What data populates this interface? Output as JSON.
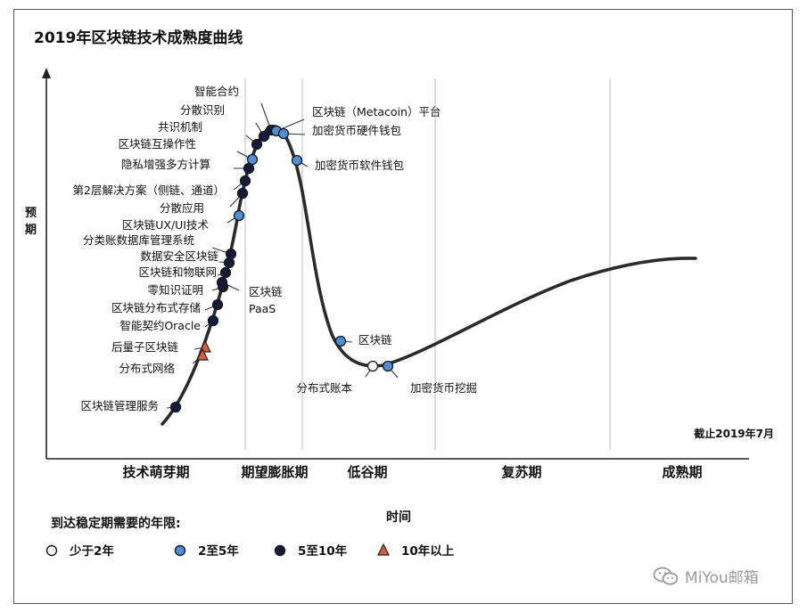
{
  "chart_data": {
    "type": "line",
    "title": "2019年区块链技术成熟度曲线",
    "xlabel": "时间",
    "ylabel": "预期",
    "date_note": "截止2019年7月",
    "phases": [
      "技术萌芽期",
      "期望膨胀期",
      "低谷期",
      "复苏期",
      "成熟期"
    ],
    "legend": {
      "title": "到达稳定期需要的年限:",
      "items": [
        {
          "key": "lt2",
          "label": "少于2年",
          "marker": "circle",
          "color": "#ffffff"
        },
        {
          "key": "2to5",
          "label": "2至5年",
          "marker": "circle",
          "color": "#4a90d9"
        },
        {
          "key": "5to10",
          "label": "5至10年",
          "marker": "circle",
          "color": "#141a3c"
        },
        {
          "key": "gt10",
          "label": "10年以上",
          "marker": "triangle",
          "color": "#e05a3a"
        }
      ]
    },
    "points": [
      {
        "label": "智能合约",
        "cat": "5to10"
      },
      {
        "label": "分散识别",
        "cat": "5to10"
      },
      {
        "label": "共识机制",
        "cat": "5to10"
      },
      {
        "label": "区块链互操作性",
        "cat": "2to5"
      },
      {
        "label": "隐私增强多方计算",
        "cat": "5to10"
      },
      {
        "label": "第2层解决方案（侧链、通道）",
        "cat": "5to10"
      },
      {
        "label": "分散应用",
        "cat": "5to10"
      },
      {
        "label": "区块链UX/UI技术",
        "cat": "2to5"
      },
      {
        "label": "分类账数据库管理系统",
        "cat": "5to10"
      },
      {
        "label": "数据安全区块链",
        "cat": "5to10"
      },
      {
        "label": "区块链和物联网",
        "cat": "5to10"
      },
      {
        "label": "零知识证明",
        "cat": "5to10"
      },
      {
        "label": "区块链PaaS",
        "cat": "5to10"
      },
      {
        "label": "区块链分布式存储",
        "cat": "5to10"
      },
      {
        "label": "智能契约Oracle",
        "cat": "5to10"
      },
      {
        "label": "后量子区块链",
        "cat": "gt10"
      },
      {
        "label": "分布式网络",
        "cat": "gt10"
      },
      {
        "label": "区块链管理服务",
        "cat": "5to10"
      },
      {
        "label": "区块链（Metacoin）平台",
        "cat": "2to5"
      },
      {
        "label": "加密货币硬件钱包",
        "cat": "2to5"
      },
      {
        "label": "加密货币软件钱包",
        "cat": "2to5"
      },
      {
        "label": "区块链",
        "cat": "2to5"
      },
      {
        "label": "分布式账本",
        "cat": "lt2"
      },
      {
        "label": "加密货币挖掘",
        "cat": "2to5"
      }
    ]
  },
  "watermark": {
    "text": "MiYou邮箱",
    "icon": "wechat-icon"
  }
}
